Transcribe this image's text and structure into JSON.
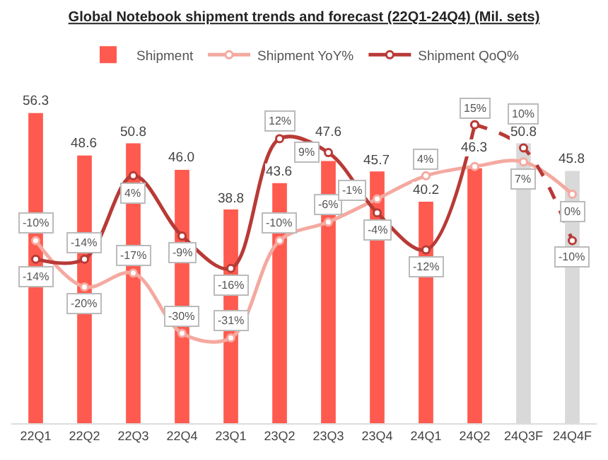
{
  "chart_data": {
    "type": "bar",
    "title": "Global Notebook shipment trends and forecast (22Q1-24Q4) (Mil. sets)",
    "categories": [
      "22Q1",
      "22Q2",
      "22Q3",
      "22Q4",
      "23Q1",
      "23Q2",
      "23Q3",
      "23Q4",
      "24Q1",
      "24Q2",
      "24Q3F",
      "24Q4F"
    ],
    "grid": false,
    "legend": "top",
    "marker": "circle",
    "tick_labels": "x",
    "series": [
      {
        "name": "Shipment",
        "colors": [
          "#ff5a4f",
          "#ff5a4f",
          "#ff5a4f",
          "#ff5a4f",
          "#ff5a4f",
          "#ff5a4f",
          "#ff5a4f",
          "#ff5a4f",
          "#ff5a4f",
          "#ff5a4f",
          "#d9d9d9",
          "#d9d9d9"
        ],
        "values": [
          56.3,
          48.6,
          50.8,
          46.0,
          38.8,
          43.6,
          47.6,
          45.7,
          40.2,
          46.3,
          50.8,
          45.8
        ],
        "value_labels": [
          "56.3",
          "48.6",
          "50.8",
          "46.0",
          "38.8",
          "43.6",
          "47.6",
          "45.7",
          "40.2",
          "46.3",
          "50.8",
          "45.8"
        ]
      },
      {
        "name": "Shipment YoY%",
        "type": "line",
        "axis": "y2",
        "color": "#f4a9a0",
        "line_style": "solid",
        "values": [
          -10,
          -20,
          -17,
          -30,
          -31,
          -10,
          -6,
          -1,
          4,
          6,
          7,
          0
        ],
        "value_labels": [
          "-10%",
          "-20%",
          "-17%",
          "-30%",
          "-31%",
          "-10%",
          "-6%",
          "-1%",
          "4%",
          null,
          "7%",
          "0%"
        ]
      },
      {
        "name": "Shipment QoQ%",
        "type": "line",
        "axis": "y2",
        "color": "#b83a36",
        "line_style": "solid",
        "values": [
          -14,
          -14,
          4,
          -9,
          -16,
          12,
          9,
          -4,
          -12,
          15,
          null,
          null
        ],
        "value_labels": [
          "-14%",
          "-14%",
          "4%",
          "-9%",
          "-16%",
          "12%",
          "9%",
          "-4%",
          "-12%",
          "15%",
          null,
          null
        ]
      },
      {
        "type": "line",
        "axis": "y2",
        "color": "#b83a36",
        "line_style": "dashed",
        "values": [
          null,
          null,
          null,
          null,
          null,
          null,
          null,
          null,
          null,
          15,
          10,
          -10
        ],
        "value_labels": [
          null,
          null,
          null,
          null,
          null,
          null,
          null,
          null,
          null,
          null,
          "10%",
          "-10%"
        ]
      }
    ]
  }
}
